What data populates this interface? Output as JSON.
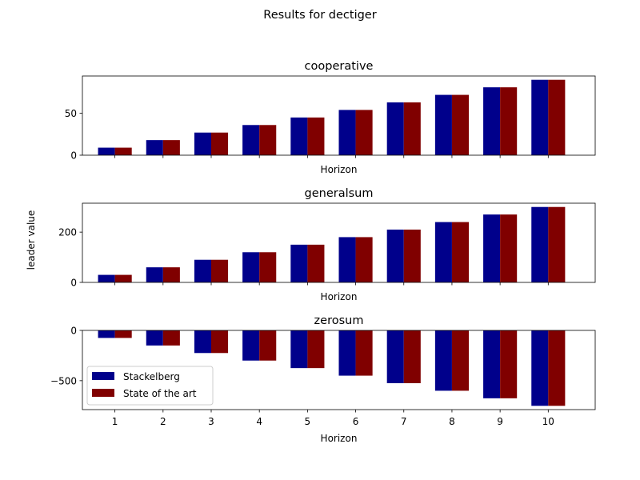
{
  "figure": {
    "suptitle": "Results for dectiger",
    "shared_ylabel": "leader value"
  },
  "chart_data": [
    {
      "type": "bar",
      "title": "cooperative",
      "xlabel": "Horizon",
      "ylabel": "",
      "categories": [
        "1",
        "2",
        "3",
        "4",
        "5",
        "6",
        "7",
        "8",
        "9",
        "10"
      ],
      "series": [
        {
          "name": "Stackelberg",
          "color": "#00008b",
          "values": [
            9,
            18,
            27,
            36,
            45,
            54,
            63,
            72,
            81,
            90
          ]
        },
        {
          "name": "State of the art",
          "color": "#800000",
          "values": [
            9,
            18,
            27,
            36,
            45,
            54,
            63,
            72,
            81,
            90
          ]
        }
      ],
      "ylim": [
        0,
        94.5
      ],
      "yticks": [
        0,
        50
      ],
      "show_xticklabels": false,
      "legend": null,
      "grid": false
    },
    {
      "type": "bar",
      "title": "generalsum",
      "xlabel": "Horizon",
      "ylabel": "",
      "categories": [
        "1",
        "2",
        "3",
        "4",
        "5",
        "6",
        "7",
        "8",
        "9",
        "10"
      ],
      "series": [
        {
          "name": "Stackelberg",
          "color": "#00008b",
          "values": [
            30,
            60,
            90,
            120,
            150,
            180,
            210,
            240,
            270,
            300
          ]
        },
        {
          "name": "State of the art",
          "color": "#800000",
          "values": [
            30,
            60,
            90,
            120,
            150,
            180,
            210,
            240,
            270,
            300
          ]
        }
      ],
      "ylim": [
        0,
        315
      ],
      "yticks": [
        0,
        200
      ],
      "show_xticklabels": false,
      "legend": null,
      "grid": false
    },
    {
      "type": "bar",
      "title": "zerosum",
      "xlabel": "Horizon",
      "ylabel": "",
      "categories": [
        "1",
        "2",
        "3",
        "4",
        "5",
        "6",
        "7",
        "8",
        "9",
        "10"
      ],
      "series": [
        {
          "name": "Stackelberg",
          "color": "#00008b",
          "values": [
            -75,
            -150,
            -225,
            -300,
            -375,
            -450,
            -525,
            -600,
            -675,
            -750
          ]
        },
        {
          "name": "State of the art",
          "color": "#800000",
          "values": [
            -75,
            -150,
            -225,
            -300,
            -375,
            -450,
            -525,
            -600,
            -675,
            -750
          ]
        }
      ],
      "ylim": [
        -787.5,
        0
      ],
      "yticks": [
        -500,
        0
      ],
      "show_xticklabels": true,
      "legend": "lower-left",
      "grid": false
    }
  ]
}
